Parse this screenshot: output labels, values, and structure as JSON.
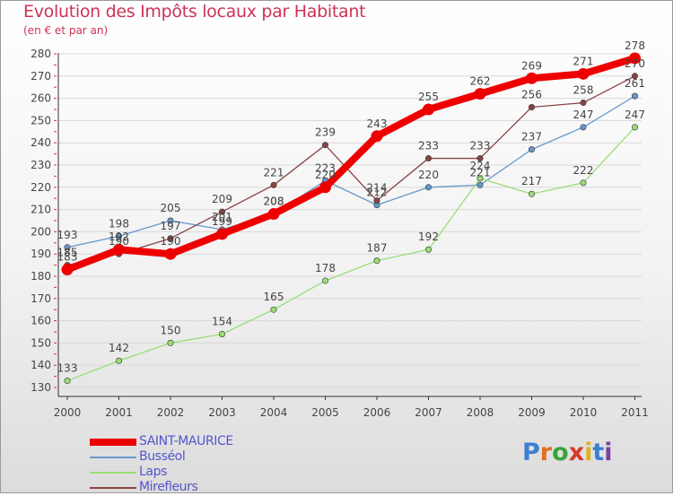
{
  "title": "Evolution des Impôts locaux par Habitant",
  "subtitle": "(en € et par an)",
  "logo": {
    "text": "Proxiti",
    "letter_colors": [
      "#3b7fd1",
      "#e0701e",
      "#3aa33a",
      "#d43a2a",
      "#e0b020",
      "#3b7fd1",
      "#7b3fa0"
    ]
  },
  "chart_data": {
    "type": "line",
    "title": "Evolution des Impôts locaux par Habitant",
    "subtitle": "(en € et par an)",
    "xlabel": "",
    "ylabel": "",
    "x": [
      "2000",
      "2001",
      "2002",
      "2003",
      "2004",
      "2005",
      "2006",
      "2007",
      "2008",
      "2009",
      "2010",
      "2011"
    ],
    "ylim": [
      130,
      280
    ],
    "y_ticks": [
      130,
      140,
      150,
      160,
      170,
      180,
      190,
      200,
      210,
      220,
      230,
      240,
      250,
      260,
      270,
      280
    ],
    "grid": true,
    "legend_position": "bottom-left",
    "series": [
      {
        "name": "SAINT-MAURICE",
        "color": "#ee0000",
        "values": [
          183,
          192,
          190,
          199,
          208,
          220,
          243,
          255,
          262,
          269,
          271,
          278
        ],
        "labels": [
          "183",
          "192",
          "190",
          "199",
          "208",
          "220",
          "243",
          "255",
          "262",
          "269",
          "271",
          "278"
        ]
      },
      {
        "name": "Busséol",
        "color": "#6699cc",
        "values": [
          193,
          198,
          205,
          201,
          208,
          223,
          212,
          220,
          221,
          237,
          247,
          261
        ],
        "labels": [
          "193",
          "198",
          "205",
          "201",
          "208",
          "223",
          "212",
          "220",
          "221",
          "237",
          "247",
          "261"
        ]
      },
      {
        "name": "Laps",
        "color": "#99dd77",
        "values": [
          133,
          142,
          150,
          154,
          165,
          178,
          187,
          192,
          224,
          217,
          222,
          247
        ],
        "labels": [
          "133",
          "142",
          "150",
          "154",
          "165",
          "178",
          "187",
          "192",
          "224",
          "217",
          "222",
          "247"
        ]
      },
      {
        "name": "Mirefleurs",
        "color": "#884444",
        "values": [
          185,
          190,
          197,
          209,
          221,
          239,
          214,
          233,
          233,
          256,
          258,
          270
        ],
        "labels": [
          "185",
          "190",
          "197",
          "209",
          "221",
          "239",
          "214",
          "233",
          "233",
          "256",
          "258",
          "270"
        ]
      }
    ]
  }
}
